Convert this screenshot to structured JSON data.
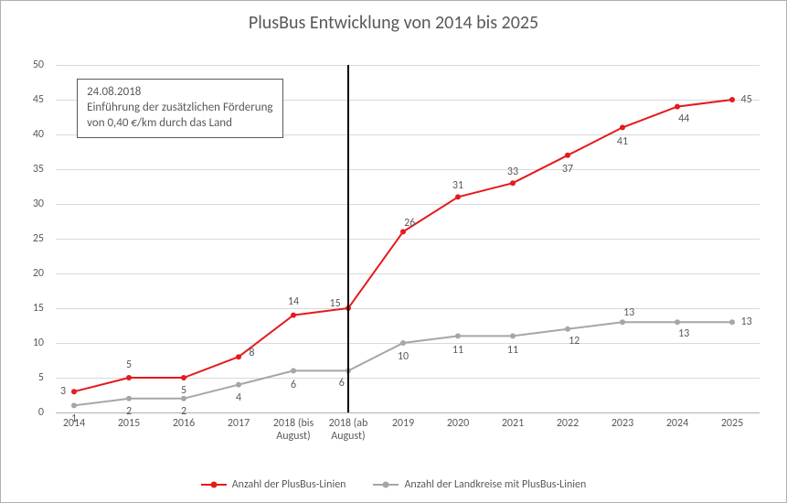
{
  "chart": {
    "type": "line",
    "title": "PlusBus Entwicklung von 2014 bis 2025",
    "title_fontsize": 20,
    "background_color": "#ffffff",
    "border_color": "#b0b0b0",
    "grid_color": "#d9d9d9",
    "label_color": "#595959",
    "label_fontsize": 12,
    "ylim": [
      0,
      50
    ],
    "ytick_step": 5,
    "yticks": [
      0,
      5,
      10,
      15,
      20,
      25,
      30,
      35,
      40,
      45,
      50
    ],
    "categories": [
      "2014",
      "2015",
      "2016",
      "2017",
      "2018 (bis August)",
      "2018 (ab August)",
      "2019",
      "2020",
      "2021",
      "2022",
      "2023",
      "2024",
      "2025"
    ],
    "series": [
      {
        "name": "Anzahl der PlusBus-Linien",
        "color": "#e41a1c",
        "line_width": 2,
        "marker": "circle",
        "marker_size": 6,
        "values": [
          3,
          5,
          5,
          8,
          14,
          15,
          26,
          31,
          33,
          37,
          41,
          44,
          45
        ],
        "label_offsets": [
          [
            -1.0,
            0
          ],
          [
            0,
            1.3
          ],
          [
            0,
            -1.3
          ],
          [
            1.2,
            0.4
          ],
          [
            0,
            1.3
          ],
          [
            -1.2,
            0.5
          ],
          [
            0.6,
            0.9
          ],
          [
            0,
            1.1
          ],
          [
            0,
            1.1
          ],
          [
            0,
            -1.4
          ],
          [
            0,
            -1.4
          ],
          [
            0.6,
            -1.2
          ],
          [
            1.3,
            0
          ]
        ]
      },
      {
        "name": "Anzahl der Landkreise mit PlusBus-Linien",
        "color": "#a6a6a6",
        "line_width": 2,
        "marker": "circle",
        "marker_size": 6,
        "values": [
          1,
          2,
          2,
          4,
          6,
          6,
          10,
          11,
          11,
          12,
          13,
          13,
          13
        ],
        "label_offsets": [
          [
            0,
            -1.3
          ],
          [
            0,
            -1.3
          ],
          [
            0,
            -1.3
          ],
          [
            0,
            -1.3
          ],
          [
            0,
            -1.4
          ],
          [
            -0.6,
            -1.2
          ],
          [
            0,
            -1.4
          ],
          [
            0,
            -1.4
          ],
          [
            0,
            -1.4
          ],
          [
            0.6,
            -1.2
          ],
          [
            0.6,
            0.9
          ],
          [
            0.6,
            -1.2
          ],
          [
            1.3,
            0
          ]
        ]
      }
    ],
    "annotation": {
      "text_line1": "24.08.2018",
      "text_line2": "Einführung der zusätzlichen Förderung",
      "text_line3": "von 0,40 €/km durch das Land",
      "box_left_pct": 3,
      "box_top_y": 48,
      "border_color": "#595959"
    },
    "divider": {
      "at_category_index": 5,
      "color": "#000000"
    },
    "legend": {
      "position": "bottom",
      "items": [
        {
          "label": "Anzahl der PlusBus-Linien",
          "color": "#e41a1c"
        },
        {
          "label": "Anzahl der Landkreise mit PlusBus-Linien",
          "color": "#a6a6a6"
        }
      ]
    }
  }
}
